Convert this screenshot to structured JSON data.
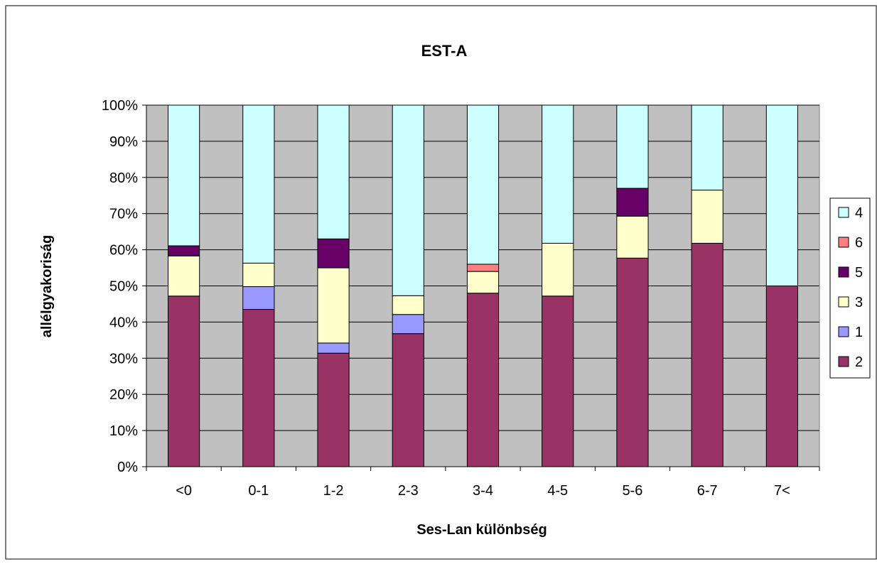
{
  "chart_data": {
    "type": "bar",
    "stacked": "percent",
    "title": "EST-A",
    "xlabel": "Ses-Lan különbség",
    "ylabel": "allélgyakoriság",
    "categories": [
      "<0",
      "0-1",
      "1-2",
      "2-3",
      "3-4",
      "4-5",
      "5-6",
      "6-7",
      "7<"
    ],
    "ylim": [
      0,
      100
    ],
    "yticks": [
      "0%",
      "10%",
      "20%",
      "30%",
      "40%",
      "50%",
      "60%",
      "70%",
      "80%",
      "90%",
      "100%"
    ],
    "grid": true,
    "legend_position": "right",
    "plot_background": "#c0c0c0",
    "series": [
      {
        "name": "2",
        "color": "#993366",
        "values": [
          47.2,
          43.5,
          31.4,
          36.8,
          48.0,
          47.2,
          57.7,
          61.8,
          50.0
        ]
      },
      {
        "name": "1",
        "color": "#9999ff",
        "values": [
          0,
          6.3,
          2.8,
          5.3,
          0,
          0,
          0,
          0,
          0
        ]
      },
      {
        "name": "3",
        "color": "#ffffcc",
        "values": [
          11.1,
          6.5,
          20.8,
          5.2,
          6.0,
          14.6,
          11.6,
          14.7,
          0
        ]
      },
      {
        "name": "5",
        "color": "#660066",
        "values": [
          2.8,
          0,
          8.0,
          0,
          0,
          0,
          7.7,
          0,
          0
        ]
      },
      {
        "name": "6",
        "color": "#ff8080",
        "values": [
          0,
          0,
          0,
          0,
          2.0,
          0,
          0,
          0,
          0
        ]
      },
      {
        "name": "4",
        "color": "#ccffff",
        "values": [
          38.9,
          43.7,
          37.0,
          52.7,
          44.0,
          38.2,
          23.0,
          23.5,
          50.0
        ]
      }
    ],
    "legend_order": [
      "4",
      "6",
      "5",
      "3",
      "1",
      "2"
    ]
  }
}
